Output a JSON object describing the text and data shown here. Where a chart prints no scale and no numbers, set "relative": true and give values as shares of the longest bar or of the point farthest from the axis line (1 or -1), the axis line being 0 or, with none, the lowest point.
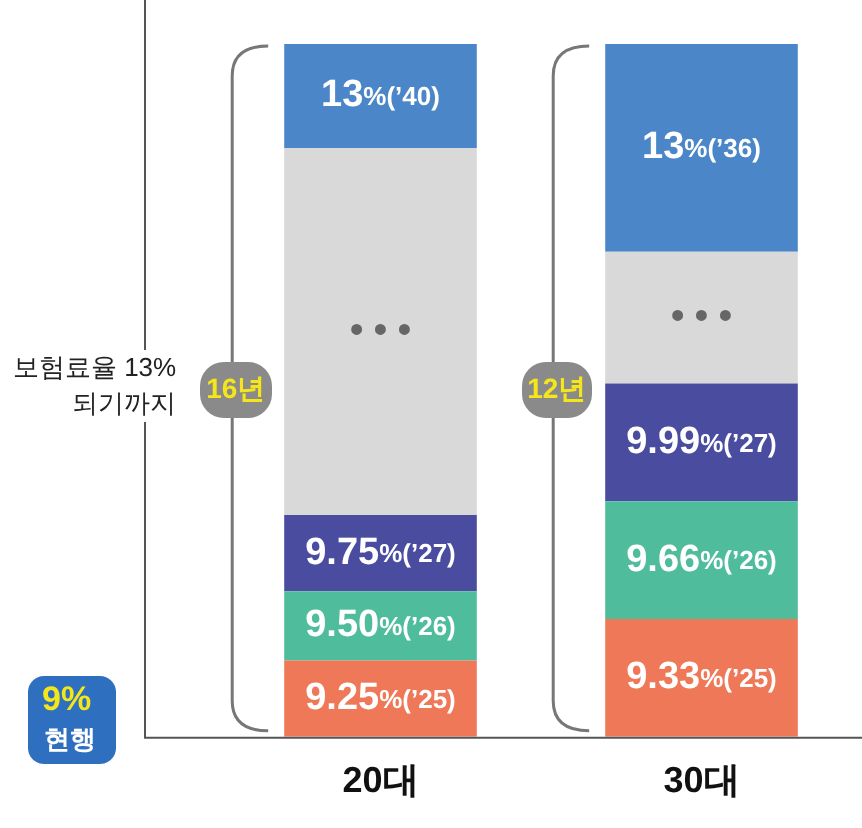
{
  "chart_data": {
    "type": "bar",
    "stacked": true,
    "relative": true,
    "legend": false,
    "grid": false,
    "tick_labels": "x",
    "categories": [
      "20대",
      "30대"
    ],
    "series": [
      {
        "color": "#ee7857",
        "values": [
          0.11,
          0.17
        ]
      },
      {
        "color": "#4fbd9c",
        "values": [
          0.1,
          0.17
        ]
      },
      {
        "color": "#4a4ca0",
        "values": [
          0.11,
          0.17
        ]
      },
      {
        "color": "#d9d9d9",
        "values": [
          0.53,
          0.19
        ]
      },
      {
        "color": "#4b87c8",
        "values": [
          0.15,
          0.3
        ]
      }
    ],
    "annotations": [
      "보험료율 13%되기까지",
      "16년",
      "12년",
      "9%",
      "현행",
      "9.25%(’25)",
      "9.50%(’26)",
      "9.75%(’27)",
      "• • •",
      "13%(’40)",
      "9.33%(’25)",
      "9.66%(’26)",
      "9.99%(’27)",
      "• • •",
      "13%(’36)"
    ]
  }
}
